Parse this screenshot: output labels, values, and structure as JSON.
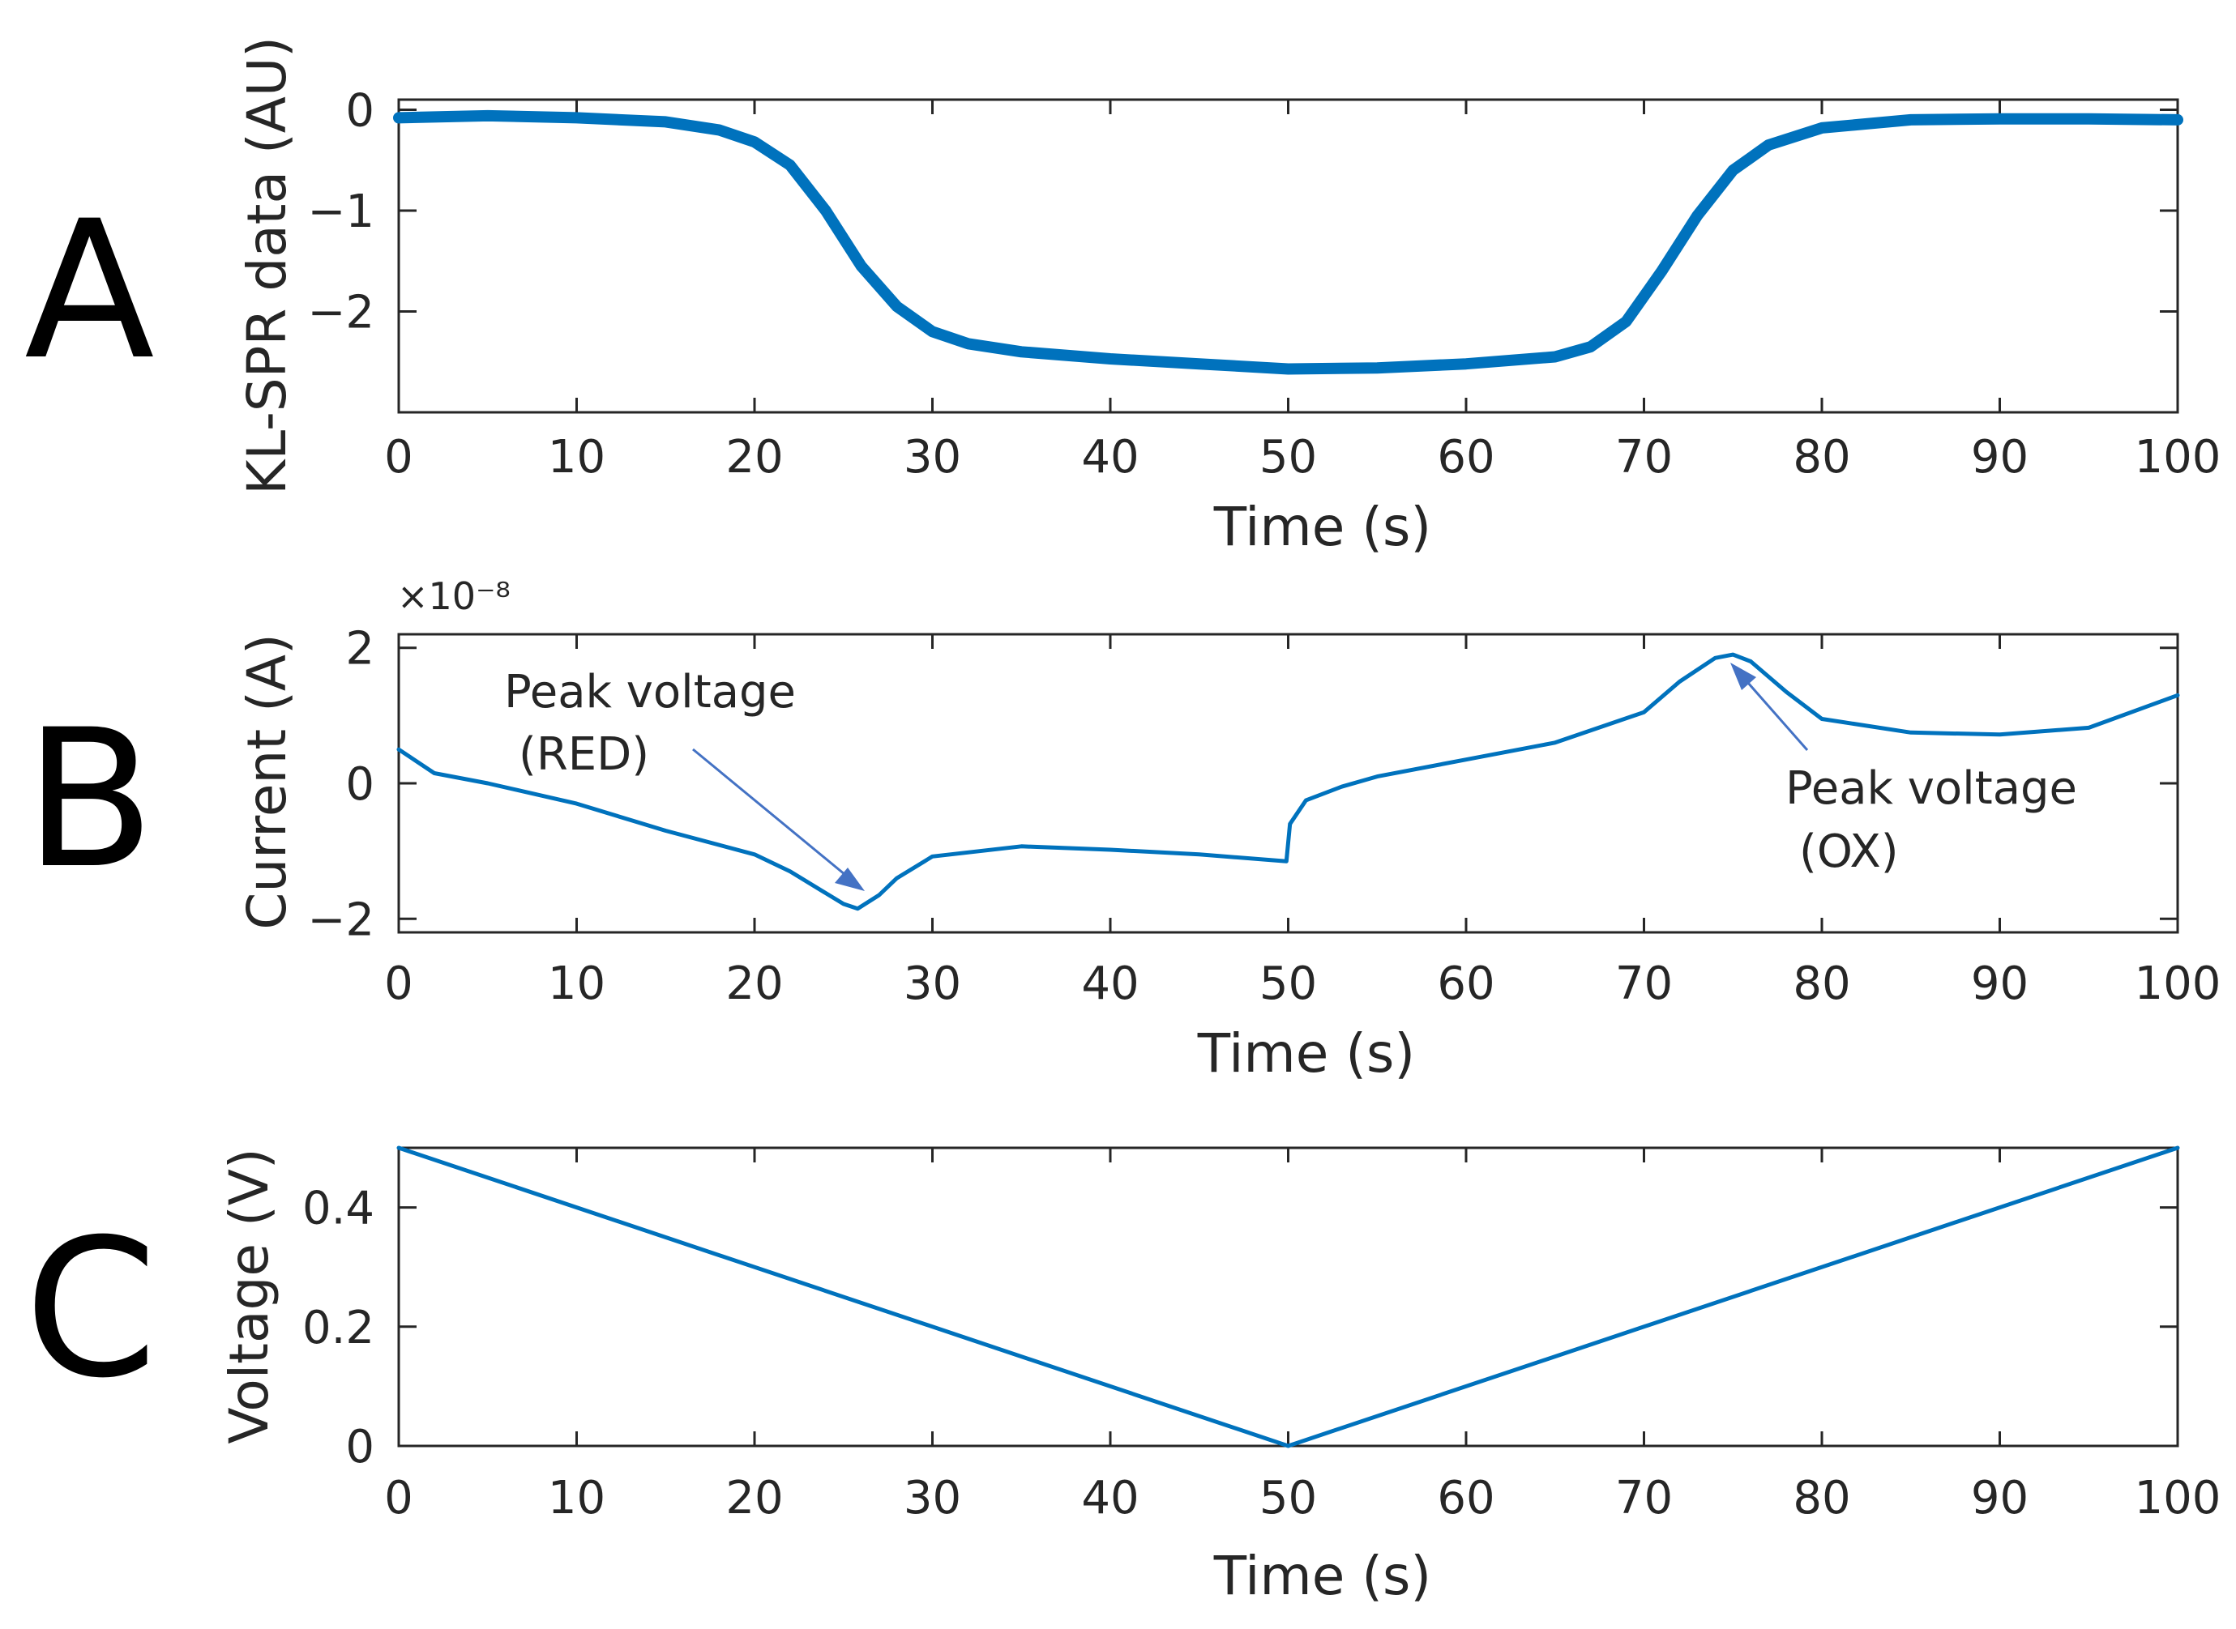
{
  "colors": {
    "series": "#0072BD",
    "arrow": "#4472C4",
    "axis": "#262626"
  },
  "chart_data": [
    {
      "panel": "A",
      "type": "line",
      "xlabel": "Time (s)",
      "ylabel": "KL-SPR data (AU)",
      "xlim": [
        0,
        100
      ],
      "ylim": [
        -3,
        0.1
      ],
      "xticks": [
        0,
        10,
        20,
        30,
        40,
        50,
        60,
        70,
        80,
        90,
        100
      ],
      "yticks": [
        0,
        -1,
        -2
      ],
      "ytick_labels": [
        "0",
        "−1",
        "−2"
      ],
      "series": [
        {
          "name": "KL-SPR data",
          "x": [
            0,
            5,
            10,
            15,
            18,
            20,
            22,
            24,
            26,
            28,
            30,
            32,
            35,
            40,
            45,
            50,
            55,
            60,
            65,
            67,
            69,
            71,
            73,
            75,
            77,
            80,
            85,
            90,
            95,
            100
          ],
          "y": [
            -0.08,
            -0.06,
            -0.08,
            -0.12,
            -0.2,
            -0.32,
            -0.55,
            -1.0,
            -1.55,
            -1.95,
            -2.2,
            -2.32,
            -2.4,
            -2.47,
            -2.52,
            -2.57,
            -2.56,
            -2.52,
            -2.45,
            -2.35,
            -2.1,
            -1.6,
            -1.05,
            -0.6,
            -0.35,
            -0.18,
            -0.1,
            -0.09,
            -0.09,
            -0.1
          ]
        }
      ]
    },
    {
      "panel": "B",
      "type": "line",
      "xlabel": "Time (s)",
      "ylabel": "Current (A)",
      "exponent": "×10⁻⁸",
      "xlim": [
        0,
        100
      ],
      "ylim": [
        -2.2,
        2.2
      ],
      "xticks": [
        0,
        10,
        20,
        30,
        40,
        50,
        60,
        70,
        80,
        90,
        100
      ],
      "yticks": [
        2,
        0,
        -2
      ],
      "ytick_labels": [
        "2",
        "0",
        "−2"
      ],
      "annotations": [
        {
          "line1": "Peak voltage",
          "line2": "(RED)",
          "target": [
            25.8,
            -1.85
          ]
        },
        {
          "line1": "Peak voltage",
          "line2": "(OX)",
          "target": [
            74.8,
            1.9
          ]
        }
      ],
      "series": [
        {
          "name": "Current",
          "x": [
            0,
            2,
            5,
            10,
            15,
            20,
            22,
            24,
            25,
            25.8,
            27,
            28,
            30,
            35,
            40,
            45,
            49.9,
            50.1,
            51,
            53,
            55,
            60,
            65,
            70,
            72,
            74,
            75,
            76,
            78,
            80,
            85,
            90,
            95,
            100
          ],
          "y": [
            0.5,
            0.15,
            0.0,
            -0.3,
            -0.7,
            -1.05,
            -1.3,
            -1.62,
            -1.78,
            -1.85,
            -1.65,
            -1.4,
            -1.08,
            -0.93,
            -0.98,
            -1.05,
            -1.15,
            -0.6,
            -0.25,
            -0.05,
            0.1,
            0.35,
            0.6,
            1.05,
            1.5,
            1.85,
            1.9,
            1.8,
            1.35,
            0.95,
            0.75,
            0.72,
            0.82,
            1.3
          ]
        }
      ]
    },
    {
      "panel": "C",
      "type": "line",
      "xlabel": "Time (s)",
      "ylabel": "Voltage (V)",
      "xlim": [
        0,
        100
      ],
      "ylim": [
        0,
        0.5
      ],
      "xticks": [
        0,
        10,
        20,
        30,
        40,
        50,
        60,
        70,
        80,
        90,
        100
      ],
      "yticks": [
        0,
        0.2,
        0.4
      ],
      "ytick_labels": [
        "0",
        "0.2",
        "0.4"
      ],
      "series": [
        {
          "name": "Voltage",
          "x": [
            0,
            50,
            100
          ],
          "y": [
            0.5,
            0.0,
            0.5
          ]
        }
      ]
    }
  ]
}
